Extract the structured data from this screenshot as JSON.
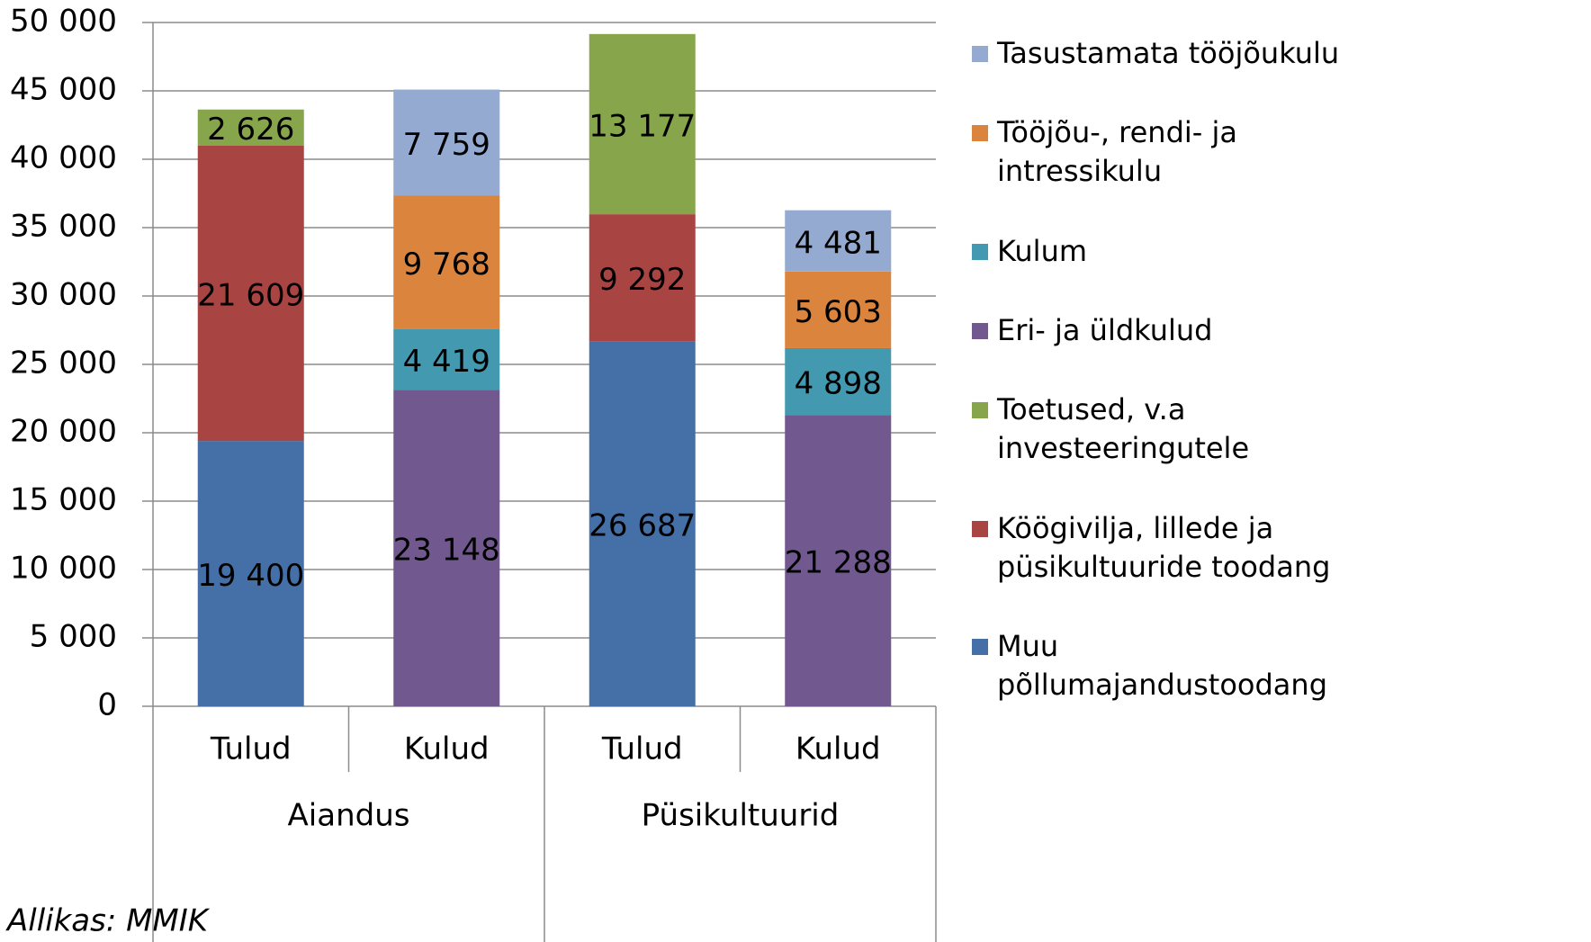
{
  "chart_data": {
    "type": "stacked_bar",
    "categories": [
      "Tulud",
      "Kulud",
      "Tulud",
      "Kulud"
    ],
    "category_groups": [
      "Aiandus",
      "Püsikultuurid"
    ],
    "annotation": "Allikas: MMIK",
    "ylim": [
      0,
      50000
    ],
    "yticks": [
      0,
      {
        "value": 5000,
        "label": "5 000"
      },
      {
        "value": 10000,
        "label": "10 000"
      },
      {
        "value": 15000,
        "label": "15 000"
      },
      {
        "value": 20000,
        "label": "20 000"
      },
      {
        "value": 25000,
        "label": "25 000"
      },
      {
        "value": 30000,
        "label": "30 000"
      },
      {
        "value": 35000,
        "label": "35 000"
      },
      {
        "value": 40000,
        "label": "40 000"
      },
      {
        "value": 45000,
        "label": "45 000"
      },
      {
        "value": 50000,
        "label": "50 000"
      }
    ],
    "grid": true,
    "legend": "right",
    "series": [
      {
        "name": "Muu põllumajandustoodang",
        "color": "#4570a7",
        "values": [
          19400,
          null,
          26687,
          null
        ],
        "value_labels": [
          "19 400",
          null,
          "26 687",
          null
        ]
      },
      {
        "name": "Köögivilja, lillede ja püsikultuuride toodang",
        "color": "#a84442",
        "values": [
          21609,
          null,
          9292,
          null
        ],
        "value_labels": [
          "21 609",
          null,
          "9 292",
          null
        ]
      },
      {
        "name": "Toetused, v.a investeeringutele",
        "color": "#87a64b",
        "values": [
          2626,
          null,
          13177,
          null
        ],
        "value_labels": [
          "2 626",
          null,
          "13 177",
          null
        ]
      },
      {
        "name": "Eri- ja üldkulud",
        "color": "#71598f",
        "values": [
          null,
          23148,
          null,
          21288
        ],
        "value_labels": [
          null,
          "23 148",
          null,
          "21 288"
        ]
      },
      {
        "name": "Kulum",
        "color": "#4299b0",
        "values": [
          null,
          4419,
          null,
          4898
        ],
        "value_labels": [
          null,
          "4 419",
          null,
          "4 898"
        ]
      },
      {
        "name": "Tööjõu-, rendi- ja intressikulu",
        "color": "#db843d",
        "values": [
          null,
          9768,
          null,
          5603
        ],
        "value_labels": [
          null,
          "9 768",
          null,
          "5 603"
        ]
      },
      {
        "name": "Tasustamata tööjõukulu",
        "color": "#94aad1",
        "values": [
          null,
          7759,
          null,
          4481
        ],
        "value_labels": [
          null,
          "7 759",
          null,
          "4 481"
        ]
      }
    ]
  }
}
